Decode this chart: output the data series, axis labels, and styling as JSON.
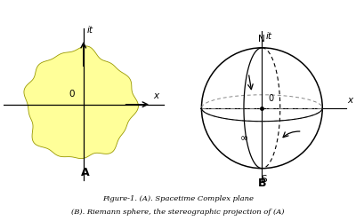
{
  "background_color": "#ffffff",
  "fig_width": 4.0,
  "fig_height": 2.49,
  "caption_line1": "Figure-1. (A). Spacetime Complex plane",
  "caption_line2": "(B). Riemann sphere, the stereographic projection of (A)",
  "label_A": "A",
  "label_B": "B",
  "blob_color": "#ffff99",
  "blob_edge_color": "#999900"
}
